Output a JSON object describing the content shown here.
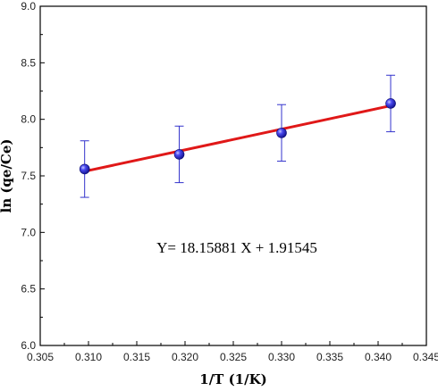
{
  "chart_data": {
    "type": "scatter",
    "xlabel": "1/T (1/K)",
    "ylabel": "ln (qe/Ce)",
    "xlim": [
      0.305,
      0.345
    ],
    "ylim": [
      6.0,
      9.0
    ],
    "xticks": [
      "0.305",
      "0.310",
      "0.315",
      "0.320",
      "0.325",
      "0.330",
      "0.335",
      "0.340",
      "0.345"
    ],
    "yticks": [
      "6.0",
      "6.5",
      "7.0",
      "7.5",
      "8.0",
      "8.5",
      "9.0"
    ],
    "grid": false,
    "points": [
      {
        "x": 0.3096,
        "y": 7.56,
        "err": 0.25
      },
      {
        "x": 0.3194,
        "y": 7.69,
        "err": 0.25
      },
      {
        "x": 0.33,
        "y": 7.88,
        "err": 0.25
      },
      {
        "x": 0.3413,
        "y": 8.14,
        "err": 0.25
      }
    ],
    "fit_line": {
      "x": [
        0.3096,
        0.3413
      ],
      "y": [
        7.54,
        8.12
      ]
    },
    "annotation": "Y= 18.15881 X + 1.91545",
    "colors": {
      "marker": "#2b2bd6",
      "error_bar": "#3333cc",
      "fit": "#e01818"
    }
  }
}
